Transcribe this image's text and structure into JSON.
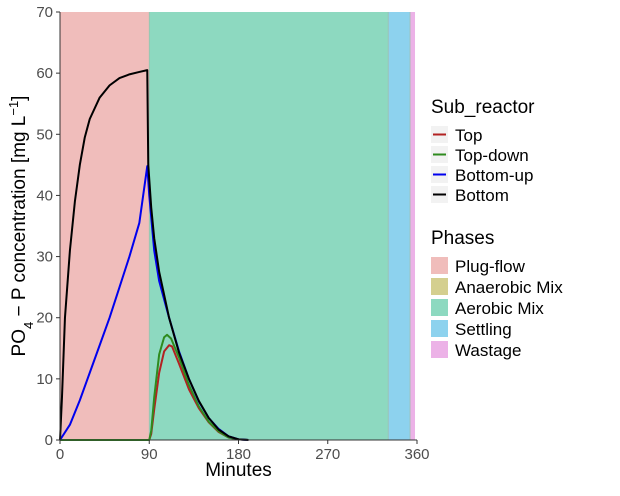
{
  "chart_data": {
    "type": "line",
    "xlabel": "Minutes",
    "ylabel_parts": {
      "base": "PO",
      "sub": "4",
      "middle": " − P concentration [mg L",
      "sup": "−1",
      "end": "]"
    },
    "xlim": [
      0,
      360
    ],
    "ylim": [
      0,
      70
    ],
    "x_ticks": [
      0,
      90,
      180,
      270,
      360
    ],
    "y_ticks": [
      0,
      10,
      20,
      30,
      40,
      50,
      60,
      70
    ],
    "grid": false,
    "phases": [
      {
        "name": "Plug-flow",
        "start": 0,
        "end": 90,
        "color": "#F0BDBB"
      },
      {
        "name": "Anaerobic Mix",
        "start": 90,
        "end": 90,
        "color": "#D4CF8F"
      },
      {
        "name": "Aerobic Mix",
        "start": 90,
        "end": 331,
        "color": "#8DD9C0"
      },
      {
        "name": "Settling",
        "start": 331,
        "end": 353,
        "color": "#8DD2EE"
      },
      {
        "name": "Wastage",
        "start": 353,
        "end": 358,
        "color": "#ECB2E7"
      }
    ],
    "series": [
      {
        "name": "Top",
        "color": "#B22222",
        "points": [
          [
            0,
            0
          ],
          [
            90,
            0
          ],
          [
            92,
            1
          ],
          [
            95,
            5
          ],
          [
            100,
            11
          ],
          [
            105,
            14.5
          ],
          [
            110,
            15.5
          ],
          [
            113,
            15.3
          ],
          [
            120,
            12.5
          ],
          [
            130,
            8.3
          ],
          [
            140,
            5.2
          ],
          [
            150,
            2.9
          ],
          [
            160,
            1.3
          ],
          [
            170,
            0.4
          ],
          [
            180,
            0.1
          ],
          [
            190,
            0
          ]
        ]
      },
      {
        "name": "Top-down",
        "color": "#2E8B1E",
        "points": [
          [
            0,
            0
          ],
          [
            90,
            0
          ],
          [
            92,
            1.5
          ],
          [
            95,
            7
          ],
          [
            100,
            14
          ],
          [
            105,
            16.8
          ],
          [
            108,
            17.2
          ],
          [
            112,
            16.6
          ],
          [
            120,
            13.5
          ],
          [
            130,
            9
          ],
          [
            140,
            5.5
          ],
          [
            150,
            3
          ],
          [
            160,
            1.4
          ],
          [
            170,
            0.4
          ],
          [
            180,
            0.1
          ],
          [
            190,
            0
          ]
        ]
      },
      {
        "name": "Bottom-up",
        "color": "#0000EE",
        "points": [
          [
            0,
            0
          ],
          [
            10,
            2.5
          ],
          [
            20,
            6.5
          ],
          [
            30,
            11
          ],
          [
            40,
            15.5
          ],
          [
            50,
            20
          ],
          [
            60,
            25
          ],
          [
            70,
            30
          ],
          [
            80,
            35.5
          ],
          [
            88,
            44.8
          ],
          [
            90,
            40
          ],
          [
            95,
            31
          ],
          [
            100,
            26
          ],
          [
            110,
            20
          ],
          [
            120,
            14.5
          ],
          [
            130,
            10
          ],
          [
            140,
            6.3
          ],
          [
            150,
            3.6
          ],
          [
            160,
            1.8
          ],
          [
            170,
            0.6
          ],
          [
            180,
            0.1
          ],
          [
            190,
            0
          ]
        ]
      },
      {
        "name": "Bottom",
        "color": "#000000",
        "points": [
          [
            0,
            0
          ],
          [
            2,
            7
          ],
          [
            5,
            20
          ],
          [
            10,
            31
          ],
          [
            15,
            39
          ],
          [
            20,
            45
          ],
          [
            25,
            49.5
          ],
          [
            30,
            52.5
          ],
          [
            40,
            56
          ],
          [
            50,
            58
          ],
          [
            60,
            59.2
          ],
          [
            70,
            59.8
          ],
          [
            80,
            60.2
          ],
          [
            88,
            60.5
          ],
          [
            89,
            45
          ],
          [
            92,
            38
          ],
          [
            95,
            33
          ],
          [
            100,
            27.5
          ],
          [
            110,
            20
          ],
          [
            120,
            14.3
          ],
          [
            130,
            10
          ],
          [
            140,
            6.4
          ],
          [
            150,
            3.6
          ],
          [
            160,
            1.7
          ],
          [
            170,
            0.6
          ],
          [
            180,
            0.1
          ],
          [
            190,
            0
          ]
        ]
      }
    ],
    "legends": {
      "sub_reactor_title": "Sub_reactor",
      "phases_title": "Phases"
    }
  }
}
